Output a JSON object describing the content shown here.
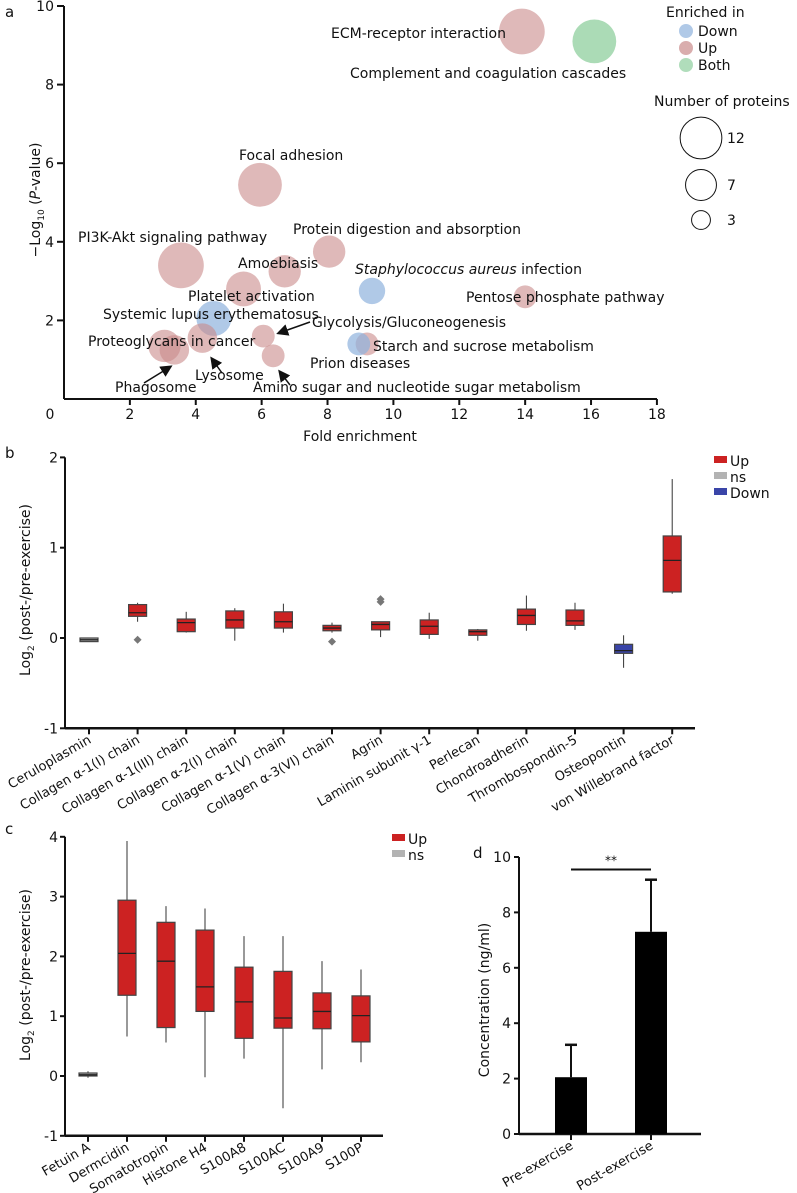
{
  "chart_data": [
    {
      "panel_label": "a",
      "type": "scatter",
      "xlabel": "Fold enrichment",
      "ylabel": {
        "prefix": "−Log",
        "sub": "10",
        "mid": " (",
        "italic": "P",
        "suffix": "-value)"
      },
      "xlim": [
        0,
        18
      ],
      "ylim": [
        0,
        10
      ],
      "xticks": [
        0,
        2,
        4,
        6,
        8,
        10,
        12,
        14,
        16,
        18
      ],
      "yticks": [
        0,
        2,
        4,
        6,
        8,
        10
      ],
      "legend": {
        "color_title": "Enriched in",
        "groups": [
          {
            "name": "Down",
            "color": "#8fb2dd"
          },
          {
            "name": "Up",
            "color": "#c98a8a"
          },
          {
            "name": "Both",
            "color": "#8fcf9e"
          }
        ],
        "size_title": "Number of proteins",
        "sizes": [
          12,
          7,
          3
        ],
        "placement": "top-right"
      },
      "points": [
        {
          "label": "ECM-receptor interaction",
          "x": 13.9,
          "y": 9.35,
          "size": 12,
          "group": "Up"
        },
        {
          "label": "Complement and coagulation cascades",
          "x": 16.1,
          "y": 9.1,
          "size": 11,
          "group": "Both"
        },
        {
          "label": "Focal adhesion",
          "x": 5.95,
          "y": 5.45,
          "size": 11,
          "group": "Up"
        },
        {
          "label": "PI3K-Akt signaling pathway",
          "x": 3.55,
          "y": 3.4,
          "size": 12,
          "group": "Up"
        },
        {
          "label": "Protein digestion and absorption",
          "x": 8.05,
          "y": 3.75,
          "size": 6,
          "group": "Up"
        },
        {
          "label": "Amoebiasis",
          "x": 6.7,
          "y": 3.25,
          "size": 6,
          "group": "Up"
        },
        {
          "label": "Staphylococcus aureus infection",
          "italic_prefix": "Staphylococcus aureus",
          "x": 9.35,
          "y": 2.75,
          "size": 4,
          "group": "Down"
        },
        {
          "label": "Pentose phosphate pathway",
          "x": 14.0,
          "y": 2.6,
          "size": 3,
          "group": "Up"
        },
        {
          "label": "Platelet activation",
          "x": 5.45,
          "y": 2.8,
          "size": 7,
          "group": "Up"
        },
        {
          "label": "Systemic lupus erythematosus",
          "x": 4.55,
          "y": 2.05,
          "size": 7,
          "group": "Down"
        },
        {
          "label": "Glycolysis/Gluconeogenesis",
          "x": 6.05,
          "y": 1.6,
          "size": 3,
          "group": "Up"
        },
        {
          "label": "Proteoglycans in cancer",
          "x": 3.05,
          "y": 1.35,
          "size": 6,
          "group": "Up"
        },
        {
          "label": "Starch and sucrose metabolism",
          "x": 9.2,
          "y": 1.4,
          "size": 3,
          "group": "Up"
        },
        {
          "label": "Prion diseases",
          "x": 8.95,
          "y": 1.4,
          "size": 3,
          "group": "Down"
        },
        {
          "label": "Lysosome",
          "x": 4.2,
          "y": 1.55,
          "size": 5,
          "group": "Up"
        },
        {
          "label": "Phagosome",
          "x": 3.35,
          "y": 1.25,
          "size": 5,
          "group": "Up"
        },
        {
          "label": "Amino sugar and nucleotide sugar metabolism",
          "x": 6.35,
          "y": 1.1,
          "size": 3,
          "group": "Up"
        }
      ]
    },
    {
      "panel_label": "b",
      "type": "box",
      "ylabel": {
        "prefix": "Log",
        "sub": "2",
        "suffix": " (post-/pre-exercise)"
      },
      "ylim": [
        -1,
        2
      ],
      "yticks": [
        -1,
        0,
        1,
        2
      ],
      "legend": {
        "placement": "top-right",
        "items": [
          {
            "name": "Up",
            "color": "#cc2222"
          },
          {
            "name": "ns",
            "color": "#b3b3b3"
          },
          {
            "name": "Down",
            "color": "#3a45a8"
          }
        ]
      },
      "boxes": [
        {
          "category": "Ceruloplasmin",
          "status": "ns",
          "whisker_low": -0.04,
          "q1": -0.04,
          "median": -0.02,
          "q3": 0.0,
          "whisker_high": 0.0,
          "outliers": []
        },
        {
          "category": "Collagen α-1(I) chain",
          "status": "Up",
          "whisker_low": 0.18,
          "q1": 0.24,
          "median": 0.28,
          "q3": 0.37,
          "whisker_high": 0.39,
          "outliers": [
            -0.02
          ]
        },
        {
          "category": "Collagen α-1(III) chain",
          "status": "Up",
          "whisker_low": 0.06,
          "q1": 0.07,
          "median": 0.17,
          "q3": 0.21,
          "whisker_high": 0.29,
          "outliers": []
        },
        {
          "category": "Collagen α-2(I) chain",
          "status": "Up",
          "whisker_low": -0.03,
          "q1": 0.11,
          "median": 0.2,
          "q3": 0.3,
          "whisker_high": 0.33,
          "outliers": []
        },
        {
          "category": "Collagen α-1(V) chain",
          "status": "Up",
          "whisker_low": 0.06,
          "q1": 0.11,
          "median": 0.18,
          "q3": 0.29,
          "whisker_high": 0.38,
          "outliers": []
        },
        {
          "category": "Collagen α-3(VI) chain",
          "status": "Up",
          "whisker_low": 0.06,
          "q1": 0.08,
          "median": 0.11,
          "q3": 0.14,
          "whisker_high": 0.17,
          "outliers": [
            -0.04
          ]
        },
        {
          "category": "Agrin",
          "status": "Up",
          "whisker_low": 0.01,
          "q1": 0.09,
          "median": 0.15,
          "q3": 0.18,
          "whisker_high": 0.18,
          "outliers": [
            0.4,
            0.43
          ]
        },
        {
          "category": "Laminin subunit γ-1",
          "status": "Up",
          "whisker_low": -0.01,
          "q1": 0.04,
          "median": 0.13,
          "q3": 0.2,
          "whisker_high": 0.28,
          "outliers": []
        },
        {
          "category": "Perlecan",
          "status": "Up",
          "whisker_low": -0.03,
          "q1": 0.03,
          "median": 0.07,
          "q3": 0.09,
          "whisker_high": 0.1,
          "outliers": []
        },
        {
          "category": "Chondroadherin",
          "status": "Up",
          "whisker_low": 0.08,
          "q1": 0.15,
          "median": 0.25,
          "q3": 0.32,
          "whisker_high": 0.47,
          "outliers": []
        },
        {
          "category": "Thrombospondin-5",
          "status": "Up",
          "whisker_low": 0.09,
          "q1": 0.14,
          "median": 0.19,
          "q3": 0.31,
          "whisker_high": 0.39,
          "outliers": []
        },
        {
          "category": "Osteopontin",
          "status": "Down",
          "whisker_low": -0.33,
          "q1": -0.17,
          "median": -0.14,
          "q3": -0.07,
          "whisker_high": 0.03,
          "outliers": []
        },
        {
          "category": "von Willebrand factor",
          "status": "Up",
          "whisker_low": 0.49,
          "q1": 0.51,
          "median": 0.86,
          "q3": 1.13,
          "whisker_high": 1.76,
          "outliers": []
        }
      ]
    },
    {
      "panel_label": "c",
      "type": "box",
      "ylabel": {
        "prefix": "Log",
        "sub": "2",
        "suffix": " (post-/pre-exercise)"
      },
      "ylim": [
        -1,
        4
      ],
      "yticks": [
        -1,
        0,
        1,
        2,
        3,
        4
      ],
      "legend": {
        "placement": "top-right",
        "items": [
          {
            "name": "Up",
            "color": "#cc2222"
          },
          {
            "name": "ns",
            "color": "#b3b3b3"
          }
        ]
      },
      "boxes": [
        {
          "category": "Fetuin A",
          "status": "ns",
          "whisker_low": -0.03,
          "q1": 0.0,
          "median": 0.02,
          "q3": 0.05,
          "whisker_high": 0.08,
          "outliers": []
        },
        {
          "category": "Dermcidin",
          "status": "Up",
          "whisker_low": 0.66,
          "q1": 1.35,
          "median": 2.05,
          "q3": 2.94,
          "whisker_high": 3.93,
          "outliers": []
        },
        {
          "category": "Somatotropin",
          "status": "Up",
          "whisker_low": 0.56,
          "q1": 0.81,
          "median": 1.92,
          "q3": 2.57,
          "whisker_high": 2.84,
          "outliers": []
        },
        {
          "category": "Histone H4",
          "status": "Up",
          "whisker_low": -0.02,
          "q1": 1.08,
          "median": 1.49,
          "q3": 2.44,
          "whisker_high": 2.8,
          "outliers": []
        },
        {
          "category": "S100A8",
          "status": "Up",
          "whisker_low": 0.29,
          "q1": 0.63,
          "median": 1.24,
          "q3": 1.82,
          "whisker_high": 2.34,
          "outliers": []
        },
        {
          "category": "S100AC",
          "status": "Up",
          "whisker_low": -0.54,
          "q1": 0.8,
          "median": 0.97,
          "q3": 1.75,
          "whisker_high": 2.34,
          "outliers": []
        },
        {
          "category": "S100A9",
          "status": "Up",
          "whisker_low": 0.11,
          "q1": 0.79,
          "median": 1.08,
          "q3": 1.39,
          "whisker_high": 1.92,
          "outliers": []
        },
        {
          "category": "S100P",
          "status": "Up",
          "whisker_low": 0.23,
          "q1": 0.57,
          "median": 1.01,
          "q3": 1.34,
          "whisker_high": 1.78,
          "outliers": []
        }
      ]
    },
    {
      "panel_label": "d",
      "type": "bar",
      "ylabel": "Concentration (ng/ml)",
      "ylim": [
        0,
        10
      ],
      "yticks": [
        0,
        2,
        4,
        6,
        8,
        10
      ],
      "categories": [
        "Pre-exercise",
        "Post-exercise"
      ],
      "values": [
        2.05,
        7.3
      ],
      "error_upper": [
        3.22,
        9.18
      ],
      "bar_color": "#000000",
      "significance": {
        "between": [
          "Pre-exercise",
          "Post-exercise"
        ],
        "y": 9.55,
        "label": "**"
      }
    }
  ]
}
